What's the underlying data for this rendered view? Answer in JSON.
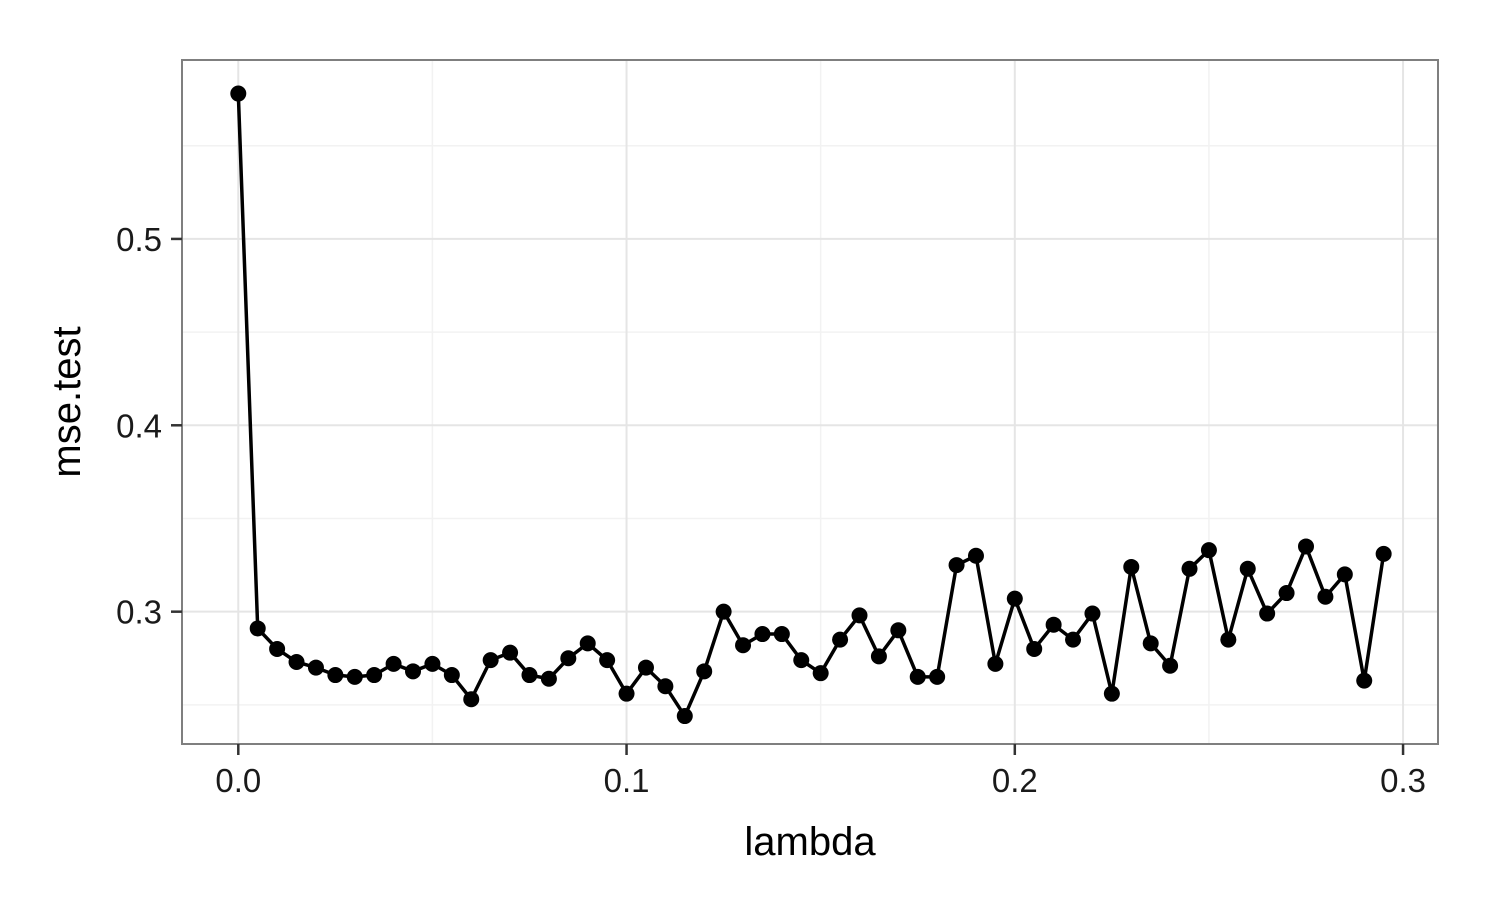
{
  "chart_data": {
    "type": "line",
    "title": "",
    "xlabel": "lambda",
    "ylabel": "mse.test",
    "xlim": [
      -0.0145,
      0.309
    ],
    "ylim": [
      0.229,
      0.596
    ],
    "x_ticks": [
      0.0,
      0.1,
      0.2,
      0.3
    ],
    "x_tick_labels": [
      "0.0",
      "0.1",
      "0.2",
      "0.3"
    ],
    "y_ticks": [
      0.3,
      0.4,
      0.5
    ],
    "y_tick_labels": [
      "0.3",
      "0.4",
      "0.5"
    ],
    "x_minor_ticks": [
      0.05,
      0.15,
      0.25
    ],
    "y_minor_ticks": [
      0.25,
      0.35,
      0.45,
      0.55
    ],
    "grid": true,
    "legend": "none",
    "markers": true,
    "line_color": "#000000",
    "series": [
      {
        "x": [
          0.0,
          0.005,
          0.01,
          0.015,
          0.02,
          0.025,
          0.03,
          0.035,
          0.04,
          0.045,
          0.05,
          0.055,
          0.06,
          0.065,
          0.07,
          0.075,
          0.08,
          0.085,
          0.09,
          0.095,
          0.1,
          0.105,
          0.11,
          0.115,
          0.12,
          0.125,
          0.13,
          0.135,
          0.14,
          0.145,
          0.15,
          0.155,
          0.16,
          0.165,
          0.17,
          0.175,
          0.18,
          0.185,
          0.19,
          0.195,
          0.2,
          0.205,
          0.21,
          0.215,
          0.22,
          0.225,
          0.23,
          0.235,
          0.24,
          0.245,
          0.25,
          0.255,
          0.26,
          0.265,
          0.27,
          0.275,
          0.28,
          0.285,
          0.29,
          0.295
        ],
        "y": [
          0.578,
          0.291,
          0.28,
          0.273,
          0.27,
          0.266,
          0.265,
          0.266,
          0.272,
          0.268,
          0.272,
          0.266,
          0.253,
          0.274,
          0.278,
          0.266,
          0.264,
          0.275,
          0.283,
          0.274,
          0.256,
          0.27,
          0.26,
          0.244,
          0.268,
          0.3,
          0.282,
          0.288,
          0.288,
          0.274,
          0.267,
          0.285,
          0.298,
          0.276,
          0.29,
          0.265,
          0.265,
          0.325,
          0.33,
          0.272,
          0.307,
          0.28,
          0.293,
          0.285,
          0.299,
          0.256,
          0.324,
          0.283,
          0.271,
          0.323,
          0.333,
          0.285,
          0.323,
          0.299,
          0.31,
          0.335,
          0.308,
          0.32,
          0.263,
          0.331
        ]
      }
    ]
  }
}
